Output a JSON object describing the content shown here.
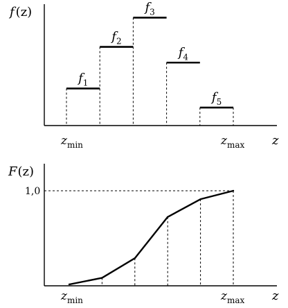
{
  "chart_data": [
    {
      "type": "bar",
      "title": "",
      "ylabel": {
        "main": "f",
        "arg": "(z)"
      },
      "xlabel": "z",
      "x_ticks": [
        {
          "main": "z",
          "sub": "min"
        },
        {
          "main": "z",
          "sub": "max"
        }
      ],
      "categories": [
        "1",
        "2",
        "3",
        "4",
        "5"
      ],
      "bar_labels": [
        {
          "main": "f",
          "sub": "1"
        },
        {
          "main": "f",
          "sub": "2"
        },
        {
          "main": "f",
          "sub": "3"
        },
        {
          "main": "f",
          "sub": "4"
        },
        {
          "main": "f",
          "sub": "5"
        }
      ],
      "values": [
        0.33,
        0.7,
        0.96,
        0.56,
        0.16
      ],
      "ylim": [
        0,
        1.08
      ],
      "grid": false
    },
    {
      "type": "line",
      "title": "",
      "ylabel": {
        "main": "F",
        "arg": "(z)"
      },
      "xlabel": "z",
      "x_ticks": [
        {
          "main": "z",
          "sub": "min"
        },
        {
          "main": "z",
          "sub": "max"
        }
      ],
      "y_tick": "1,0",
      "x": [
        0,
        1,
        2,
        3,
        4,
        5
      ],
      "values": [
        0,
        0.07,
        0.28,
        0.72,
        0.91,
        1.0
      ],
      "ylim": [
        0,
        1.0
      ],
      "grid": false
    }
  ]
}
